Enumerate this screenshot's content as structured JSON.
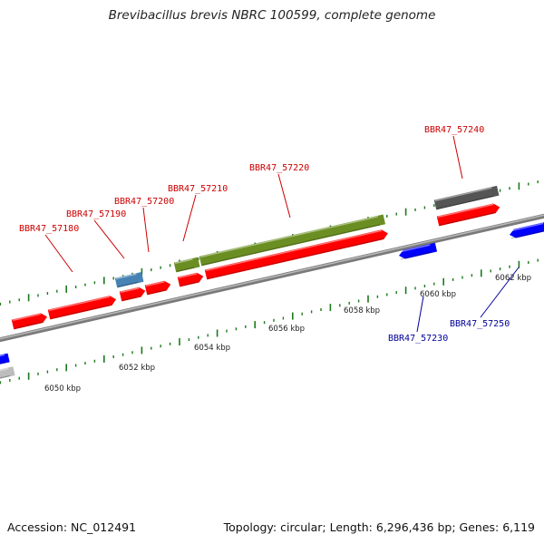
{
  "title": "Brevibacillus brevis NBRC 100599, complete genome",
  "footer": {
    "accession": "Accession: NC_012491",
    "summary": "Topology: circular; Length: 6,296,436 bp; Genes: 6,119"
  },
  "colors": {
    "forward_gene": "#ff0000",
    "reverse_gene": "#0000ff",
    "rrna": "#6b8e23",
    "pseudo": "#555555",
    "light_blue": "#4682b4",
    "backbone": "#888888",
    "tick": "#1a7a1a",
    "label_forward": "#cc0000",
    "label_reverse": "#000099"
  },
  "kbp_labels": [
    {
      "text": "6050 kbp"
    },
    {
      "text": "6052 kbp"
    },
    {
      "text": "6054 kbp"
    },
    {
      "text": "6056 kbp"
    },
    {
      "text": "6058 kbp"
    },
    {
      "text": "6060 kbp"
    },
    {
      "text": "6062 kbp"
    }
  ],
  "locus_labels": [
    {
      "text": "BBR47_57180",
      "strand": "forward"
    },
    {
      "text": "BBR47_57190",
      "strand": "forward"
    },
    {
      "text": "BBR47_57200",
      "strand": "forward"
    },
    {
      "text": "BBR47_57210",
      "strand": "forward"
    },
    {
      "text": "BBR47_57220",
      "strand": "forward"
    },
    {
      "text": "BBR47_57240",
      "strand": "forward"
    },
    {
      "text": "BBR47_57230",
      "strand": "reverse"
    },
    {
      "text": "BBR47_57250",
      "strand": "reverse"
    }
  ]
}
